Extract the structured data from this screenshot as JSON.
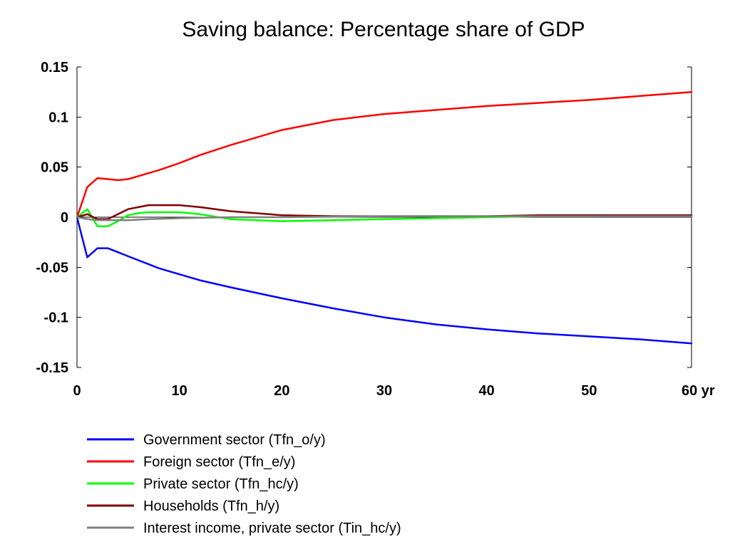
{
  "chart_data": {
    "type": "line",
    "title": "Saving balance: Percentage share of GDP",
    "xlabel": "",
    "ylabel": "",
    "xunit": "yr",
    "xlim": [
      0,
      60
    ],
    "ylim": [
      -0.15,
      0.15
    ],
    "x_ticks": [
      {
        "value": 0,
        "label": "0"
      },
      {
        "value": 10,
        "label": "10"
      },
      {
        "value": 20,
        "label": "20"
      },
      {
        "value": 30,
        "label": "30"
      },
      {
        "value": 40,
        "label": "40"
      },
      {
        "value": 50,
        "label": "50"
      },
      {
        "value": 60,
        "label": "60 yr"
      }
    ],
    "y_ticks": [
      {
        "value": 0.15,
        "label": "0.15"
      },
      {
        "value": 0.1,
        "label": "0.1"
      },
      {
        "value": 0.05,
        "label": "0.05"
      },
      {
        "value": 0,
        "label": "0"
      },
      {
        "value": -0.05,
        "label": "-0.05"
      },
      {
        "value": -0.1,
        "label": "-0.1"
      },
      {
        "value": -0.15,
        "label": "-0.15"
      }
    ],
    "grid": false,
    "zero_line": true,
    "legend_position": "bottom-left",
    "series": [
      {
        "name": "Government sector (Tfn_o/y)",
        "color": "#0000ff",
        "points": [
          [
            0,
            0
          ],
          [
            1,
            -0.04
          ],
          [
            2,
            -0.031
          ],
          [
            3,
            -0.031
          ],
          [
            4,
            -0.035
          ],
          [
            5,
            -0.039
          ],
          [
            6,
            -0.043
          ],
          [
            7,
            -0.047
          ],
          [
            8,
            -0.051
          ],
          [
            10,
            -0.057
          ],
          [
            12,
            -0.063
          ],
          [
            15,
            -0.07
          ],
          [
            20,
            -0.081
          ],
          [
            25,
            -0.091
          ],
          [
            30,
            -0.1
          ],
          [
            35,
            -0.107
          ],
          [
            40,
            -0.112
          ],
          [
            45,
            -0.116
          ],
          [
            50,
            -0.119
          ],
          [
            55,
            -0.122
          ],
          [
            60,
            -0.126
          ]
        ]
      },
      {
        "name": "Foreign sector (Tfn_e/y)",
        "color": "#ff0000",
        "points": [
          [
            0,
            0
          ],
          [
            1,
            0.03
          ],
          [
            2,
            0.039
          ],
          [
            3,
            0.038
          ],
          [
            4,
            0.037
          ],
          [
            5,
            0.038
          ],
          [
            6,
            0.041
          ],
          [
            7,
            0.044
          ],
          [
            8,
            0.047
          ],
          [
            10,
            0.054
          ],
          [
            12,
            0.062
          ],
          [
            15,
            0.072
          ],
          [
            20,
            0.087
          ],
          [
            25,
            0.097
          ],
          [
            30,
            0.103
          ],
          [
            35,
            0.107
          ],
          [
            40,
            0.111
          ],
          [
            45,
            0.114
          ],
          [
            50,
            0.117
          ],
          [
            55,
            0.121
          ],
          [
            60,
            0.125
          ]
        ]
      },
      {
        "name": "Private sector (Tfn_hc/y)",
        "color": "#00ff00",
        "points": [
          [
            0,
            0
          ],
          [
            1,
            0.008
          ],
          [
            2,
            -0.009
          ],
          [
            3,
            -0.009
          ],
          [
            4,
            -0.004
          ],
          [
            5,
            0.002
          ],
          [
            6,
            0.004
          ],
          [
            7,
            0.005
          ],
          [
            8,
            0.005
          ],
          [
            10,
            0.005
          ],
          [
            12,
            0.003
          ],
          [
            15,
            -0.002
          ],
          [
            20,
            -0.004
          ],
          [
            25,
            -0.003
          ],
          [
            30,
            -0.002
          ],
          [
            35,
            -0.001
          ],
          [
            40,
            0
          ],
          [
            45,
            0.001
          ],
          [
            50,
            0.001
          ],
          [
            55,
            0.002
          ],
          [
            60,
            0.002
          ]
        ]
      },
      {
        "name": "Households (Tfn_h/y)",
        "color": "#800000",
        "points": [
          [
            0,
            0
          ],
          [
            1,
            0.003
          ],
          [
            2,
            -0.002
          ],
          [
            3,
            -0.002
          ],
          [
            4,
            0.003
          ],
          [
            5,
            0.008
          ],
          [
            6,
            0.01
          ],
          [
            7,
            0.012
          ],
          [
            8,
            0.012
          ],
          [
            10,
            0.012
          ],
          [
            12,
            0.01
          ],
          [
            15,
            0.006
          ],
          [
            20,
            0.002
          ],
          [
            25,
            0.001
          ],
          [
            30,
            0.001
          ],
          [
            35,
            0.001
          ],
          [
            40,
            0.001
          ],
          [
            45,
            0.002
          ],
          [
            50,
            0.002
          ],
          [
            55,
            0.002
          ],
          [
            60,
            0.002
          ]
        ]
      },
      {
        "name": "Interest income, private sector (Tin_hc/y)",
        "color": "#808080",
        "points": [
          [
            0,
            0
          ],
          [
            1,
            -0.002
          ],
          [
            2,
            -0.003
          ],
          [
            3,
            -0.003
          ],
          [
            5,
            -0.003
          ],
          [
            7,
            -0.002
          ],
          [
            10,
            -0.001
          ],
          [
            15,
            0
          ],
          [
            20,
            0
          ],
          [
            30,
            0.001
          ],
          [
            40,
            0.001
          ],
          [
            50,
            0.001
          ],
          [
            60,
            0.001
          ]
        ]
      }
    ]
  }
}
